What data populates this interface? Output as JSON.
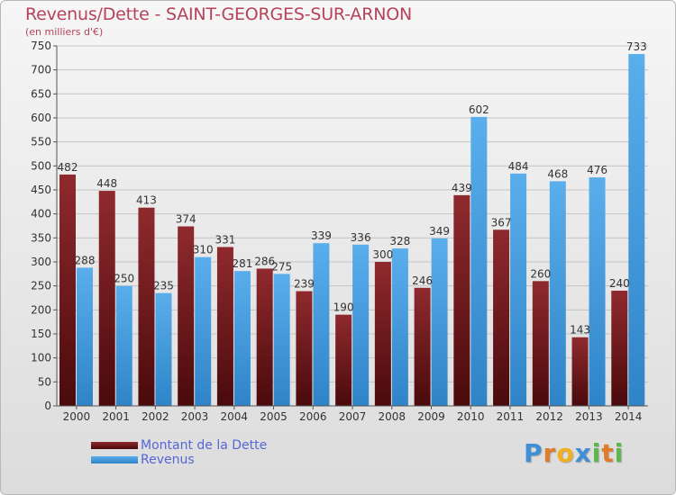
{
  "header": {
    "title": "Revenus/Dette - SAINT-GEORGES-SUR-ARNON",
    "subtitle": "(en milliers d'€)"
  },
  "chart_data": {
    "type": "bar",
    "categories": [
      "2000",
      "2001",
      "2002",
      "2003",
      "2004",
      "2005",
      "2006",
      "2007",
      "2008",
      "2009",
      "2010",
      "2011",
      "2012",
      "2013",
      "2014"
    ],
    "series": [
      {
        "name": "Montant de la Dette",
        "color": "#7a1b1f",
        "values": [
          482,
          448,
          413,
          374,
          331,
          286,
          239,
          190,
          300,
          246,
          439,
          367,
          260,
          143,
          240
        ]
      },
      {
        "name": "Revenus",
        "color": "#4a9fe0",
        "values": [
          288,
          250,
          235,
          310,
          281,
          275,
          339,
          336,
          328,
          349,
          602,
          484,
          468,
          476,
          733
        ]
      }
    ],
    "ylim": [
      0,
      750
    ],
    "yticks": [
      0,
      50,
      100,
      150,
      200,
      250,
      300,
      350,
      400,
      450,
      500,
      550,
      600,
      650,
      700,
      750
    ],
    "grid": true,
    "legend_position": "bottom-left"
  },
  "logo": {
    "letters": [
      "P",
      "r",
      "o",
      "x",
      "i",
      "t",
      "i"
    ],
    "colors": [
      "#3f8fd8",
      "#e07b2a",
      "#f0b020",
      "#3f8fd8",
      "#5cb84a",
      "#e07b2a",
      "#5cb84a"
    ]
  }
}
